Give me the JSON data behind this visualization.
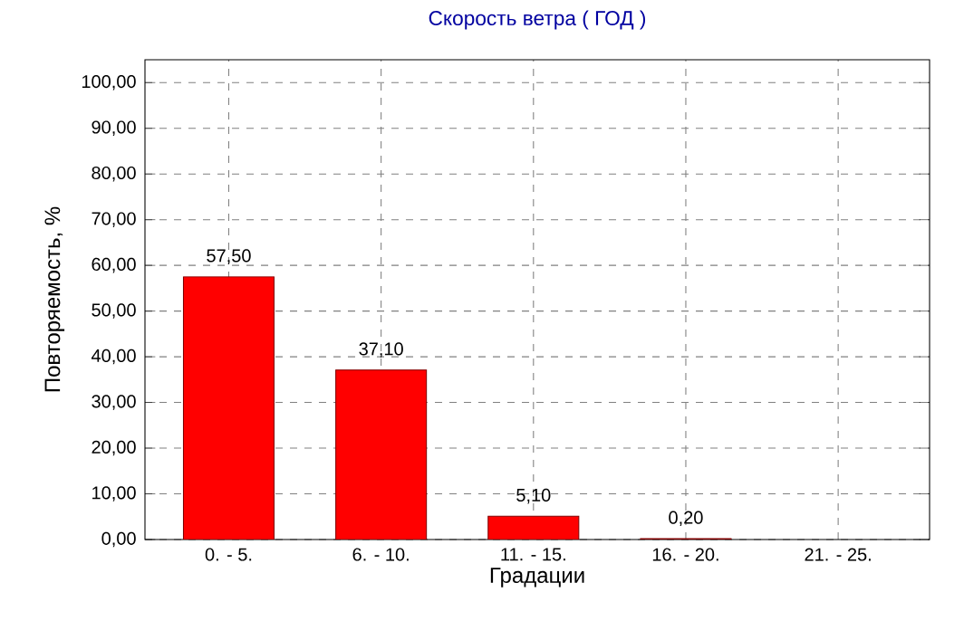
{
  "chart_data": {
    "type": "bar",
    "title": "Скорость ветра    ( ГОД )",
    "xlabel": "Градации",
    "ylabel": "Повторяемость, %",
    "categories": [
      "0. - 5.",
      "6. - 10.",
      "11. - 15.",
      "16. - 20.",
      "21. - 25."
    ],
    "values": [
      57.5,
      37.1,
      5.1,
      0.2,
      null
    ],
    "value_labels": [
      "57,50",
      "37,10",
      "5,10",
      "0,20",
      null
    ],
    "color": "#ff0000",
    "ylim": [
      0,
      105
    ],
    "yticks": [
      {
        "value": 0,
        "label": "0,00"
      },
      {
        "value": 10,
        "label": "10,00"
      },
      {
        "value": 20,
        "label": "20,00"
      },
      {
        "value": 30,
        "label": "30,00"
      },
      {
        "value": 40,
        "label": "40,00"
      },
      {
        "value": 50,
        "label": "50,00"
      },
      {
        "value": 60,
        "label": "60,00"
      },
      {
        "value": 70,
        "label": "70,00"
      },
      {
        "value": 80,
        "label": "80,00"
      },
      {
        "value": 90,
        "label": "90,00"
      },
      {
        "value": 100,
        "label": "100,00"
      }
    ],
    "grid": true
  }
}
